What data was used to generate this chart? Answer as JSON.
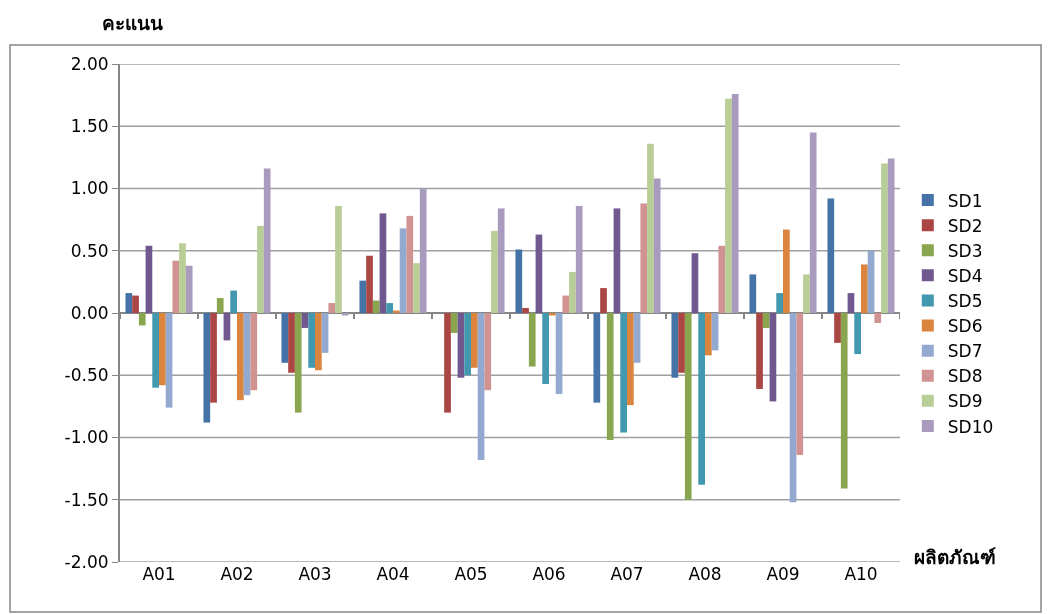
{
  "chart_data": {
    "type": "bar",
    "ylabel": "คะแนน",
    "xlabel": "ผลิตภัณฑ์",
    "categories": [
      "A01",
      "A02",
      "A03",
      "A04",
      "A05",
      "A06",
      "A07",
      "A08",
      "A09",
      "A10"
    ],
    "series": [
      {
        "name": "SD1",
        "color": "#4572a7",
        "values": [
          0.16,
          -0.88,
          -0.4,
          0.26,
          null,
          0.51,
          -0.72,
          -0.52,
          0.31,
          0.92
        ]
      },
      {
        "name": "SD2",
        "color": "#aa4643",
        "values": [
          0.14,
          -0.72,
          -0.48,
          0.46,
          -0.8,
          0.04,
          0.2,
          -0.48,
          -0.61,
          -0.24
        ]
      },
      {
        "name": "SD3",
        "color": "#89a54e",
        "values": [
          -0.1,
          0.12,
          -0.8,
          0.1,
          -0.16,
          -0.43,
          -1.02,
          -1.5,
          -0.12,
          -1.41
        ]
      },
      {
        "name": "SD4",
        "color": "#71588f",
        "values": [
          0.54,
          -0.22,
          -0.12,
          0.8,
          -0.52,
          0.63,
          0.84,
          0.48,
          -0.71,
          0.16
        ]
      },
      {
        "name": "SD5",
        "color": "#4198af",
        "values": [
          -0.6,
          0.18,
          -0.44,
          0.08,
          -0.5,
          -0.57,
          -0.96,
          -1.38,
          0.16,
          -0.33
        ]
      },
      {
        "name": "SD6",
        "color": "#db843d",
        "values": [
          -0.58,
          -0.7,
          -0.46,
          0.02,
          -0.44,
          -0.02,
          -0.74,
          -0.34,
          0.67,
          0.39
        ]
      },
      {
        "name": "SD7",
        "color": "#93a9cf",
        "values": [
          -0.76,
          -0.66,
          -0.32,
          0.68,
          -1.18,
          -0.65,
          -0.4,
          -0.3,
          -1.52,
          0.5
        ]
      },
      {
        "name": "SD8",
        "color": "#d19392",
        "values": [
          0.42,
          -0.62,
          0.08,
          0.78,
          -0.62,
          0.14,
          0.88,
          0.54,
          -1.14,
          -0.08
        ]
      },
      {
        "name": "SD9",
        "color": "#b9cd96",
        "values": [
          0.56,
          0.7,
          0.86,
          0.4,
          0.66,
          0.33,
          1.36,
          1.72,
          0.31,
          1.2
        ]
      },
      {
        "name": "SD10",
        "color": "#a99bbd",
        "values": [
          0.38,
          1.16,
          -0.02,
          1.0,
          0.84,
          0.86,
          1.08,
          1.76,
          1.45,
          1.24
        ]
      }
    ],
    "ylim": [
      -2,
      2
    ],
    "yticks": [
      {
        "value": -2,
        "label": "-2.00"
      },
      {
        "value": -1.5,
        "label": "-1.50"
      },
      {
        "value": -1,
        "label": "-1.00"
      },
      {
        "value": -0.5,
        "label": "-0.50"
      },
      {
        "value": 0,
        "label": "0.00"
      },
      {
        "value": 0.5,
        "label": "0.50"
      },
      {
        "value": 1,
        "label": "1.00"
      },
      {
        "value": 1.5,
        "label": "1.50"
      },
      {
        "value": 2,
        "label": "2.00"
      }
    ],
    "grid": "y",
    "legend": "right"
  }
}
